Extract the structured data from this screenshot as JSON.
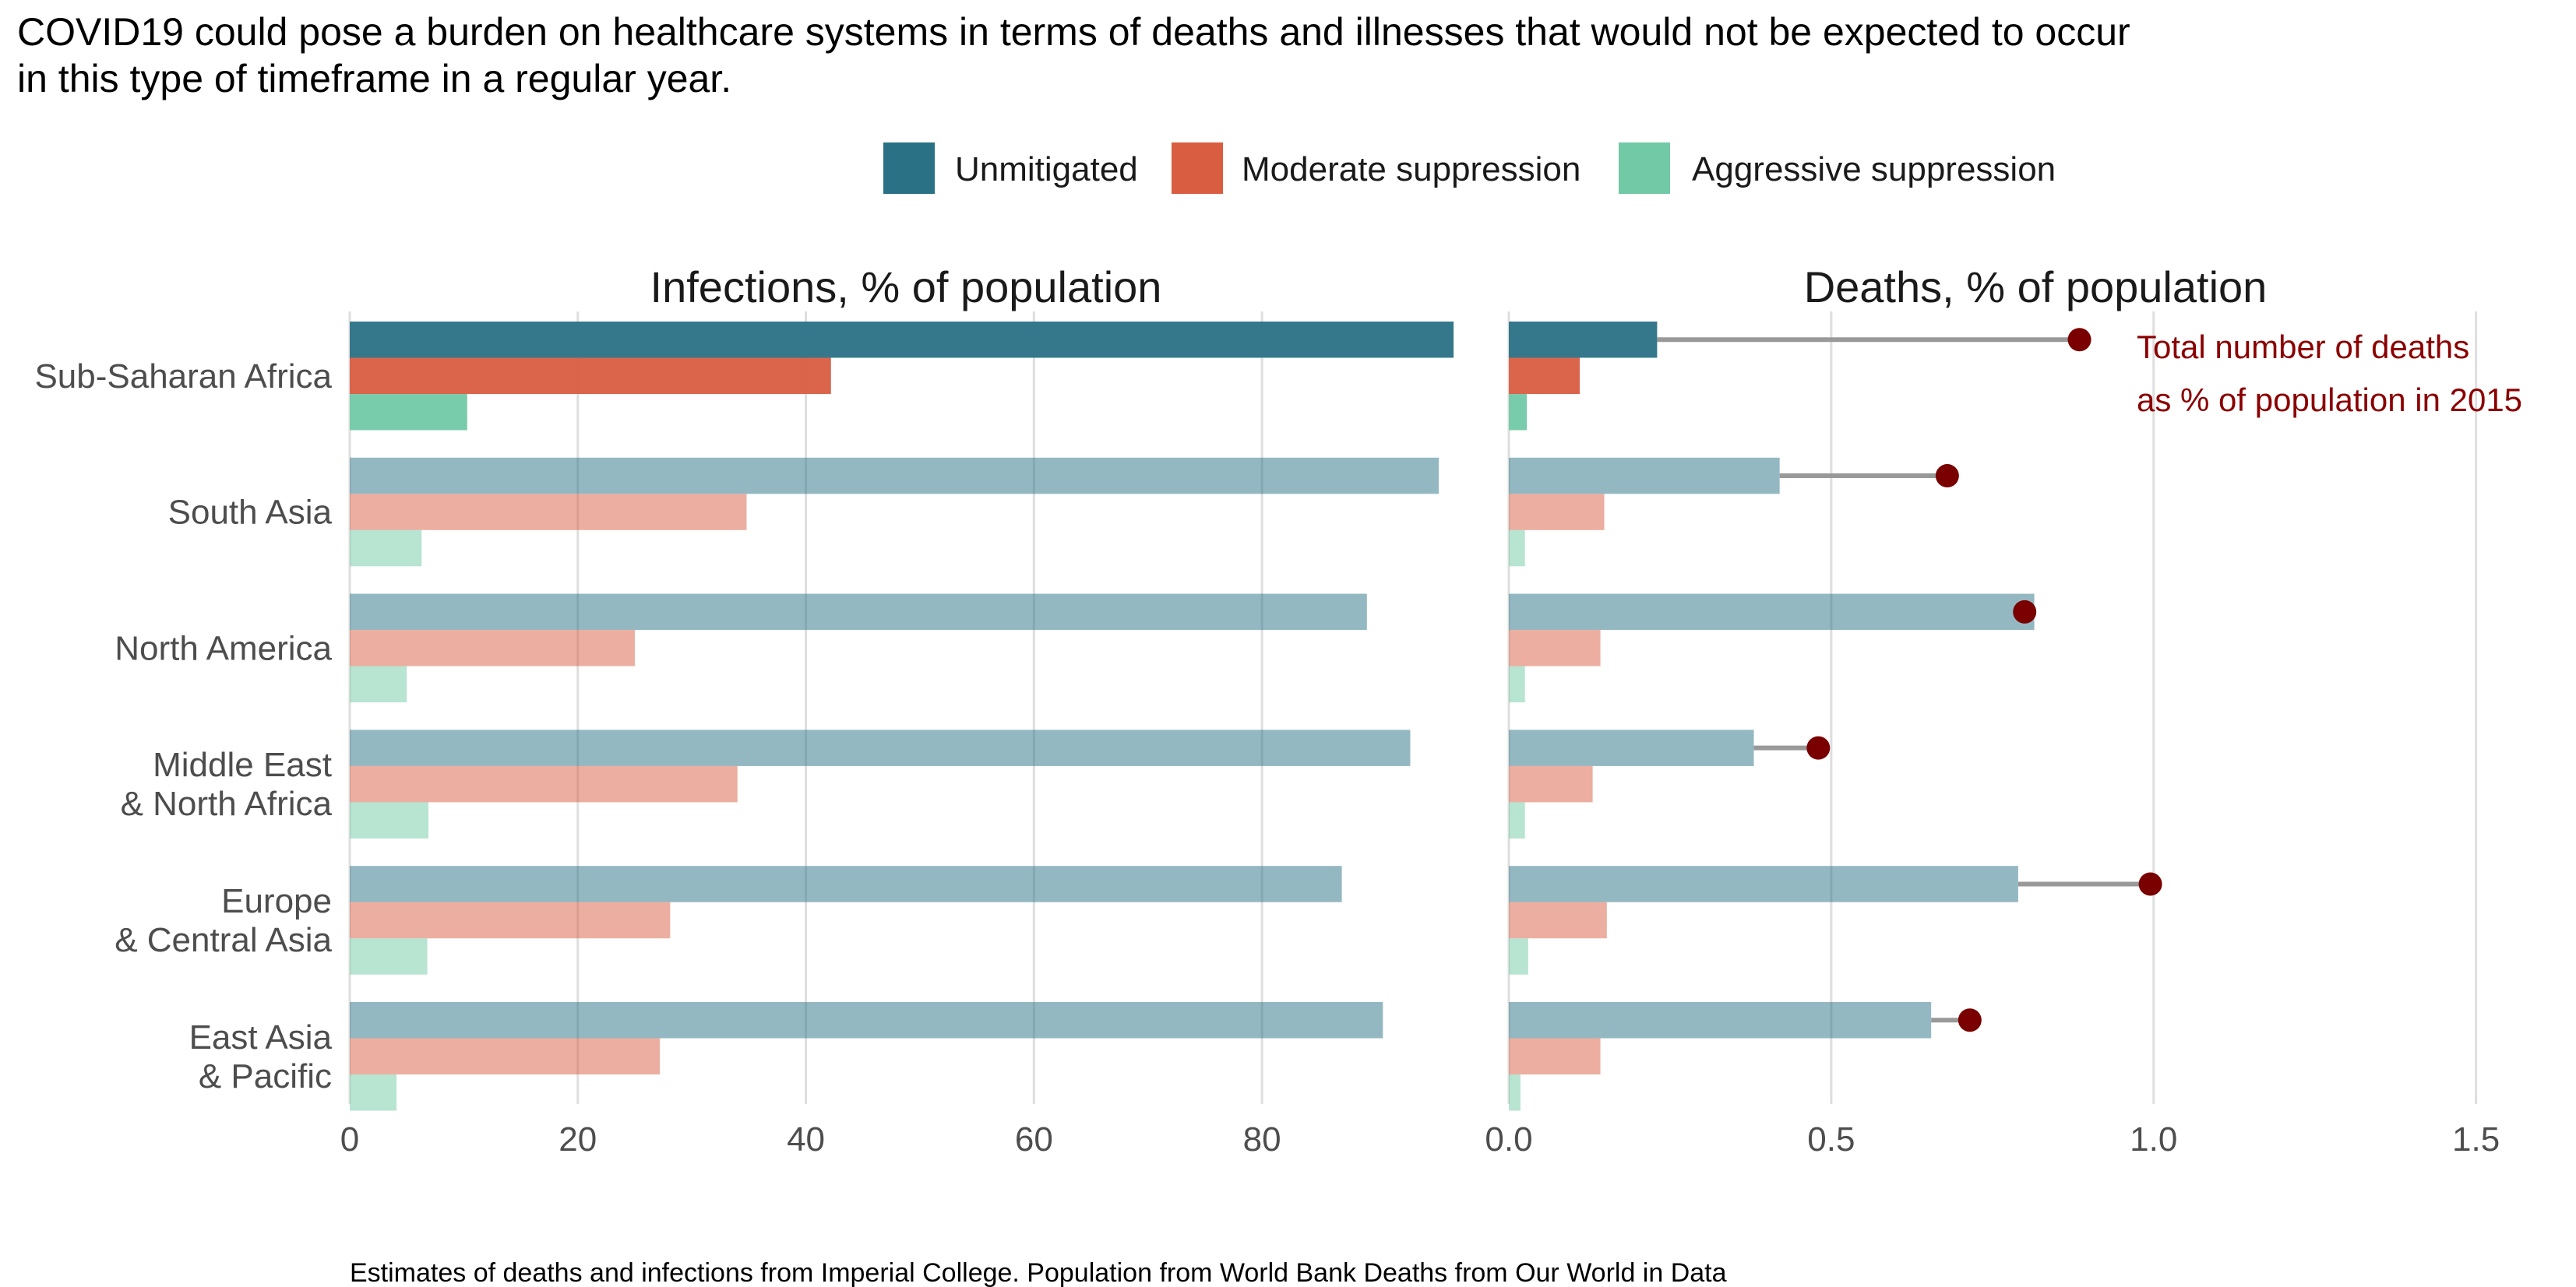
{
  "title_lines": [
    "COVID19 could pose a burden on healthcare systems in terms of deaths and illnesses that would not be expected to occur",
    "in this type of timeframe in a regular year."
  ],
  "caption": "Estimates of deaths and infections from Imperial College. Population from World Bank Deaths from Our World in Data",
  "colors": {
    "unmitigated": "#2a7185",
    "moderate": "#d95d41",
    "aggressive": "#72c9a6",
    "dot": "#7a0000",
    "segment": "#999999",
    "annotation": "#8b0000"
  },
  "chart_data": {
    "type": "bar",
    "orientation": "horizontal",
    "categories": [
      "Sub-Saharan Africa",
      "South Asia",
      "North America",
      "Middle East\n& North Africa",
      "Europe\n& Central Asia",
      "East Asia\n& Pacific"
    ],
    "highlighted_category": "Sub-Saharan Africa",
    "legend": {
      "position": "top",
      "entries": [
        "Unmitigated",
        "Moderate suppression",
        "Aggressive suppression"
      ]
    },
    "grid": true,
    "panels": [
      {
        "title": "Infections, % of population",
        "xlim": [
          0,
          97
        ],
        "ticks": [
          0,
          20,
          40,
          60,
          80
        ],
        "tick_labels": [
          "0",
          "20",
          "40",
          "60",
          "80"
        ],
        "series": [
          {
            "name": "Unmitigated",
            "values": [
              96.8,
              95.5,
              89.2,
              93.0,
              87.0,
              90.6
            ]
          },
          {
            "name": "Moderate suppression",
            "values": [
              42.2,
              34.8,
              25.0,
              34.0,
              28.1,
              27.2
            ]
          },
          {
            "name": "Aggressive suppression",
            "values": [
              10.3,
              6.3,
              5.0,
              6.9,
              6.8,
              4.1
            ]
          }
        ]
      },
      {
        "title": "Deaths, % of population",
        "xlim": [
          0,
          1.55
        ],
        "ticks": [
          0,
          0.5,
          1.0,
          1.5
        ],
        "tick_labels": [
          "0.0",
          "0.5",
          "1.0",
          "1.5"
        ],
        "series": [
          {
            "name": "Unmitigated",
            "values": [
              0.23,
              0.42,
              0.815,
              0.38,
              0.79,
              0.655
            ]
          },
          {
            "name": "Moderate suppression",
            "values": [
              0.11,
              0.148,
              0.142,
              0.13,
              0.152,
              0.142
            ]
          },
          {
            "name": "Aggressive suppression",
            "values": [
              0.028,
              0.025,
              0.025,
              0.025,
              0.03,
              0.018
            ]
          }
        ],
        "total_deaths_2015": {
          "values": [
            0.885,
            0.68,
            0.8,
            0.48,
            0.995,
            0.715
          ]
        },
        "annotation_lines": [
          "Total number of deaths",
          "as % of population in 2015"
        ]
      }
    ]
  }
}
